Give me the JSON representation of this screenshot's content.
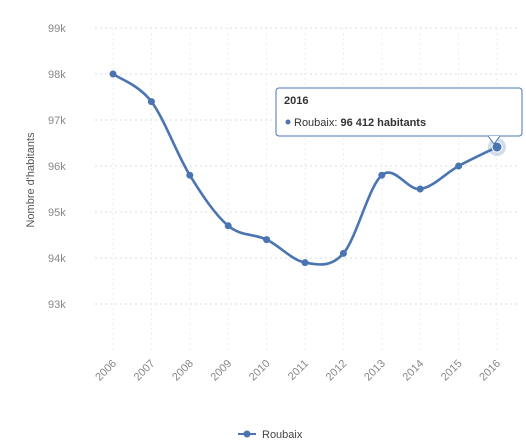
{
  "chart_data": {
    "type": "line",
    "ylabel": "Nombre d'habitants",
    "categories": [
      "2006",
      "2007",
      "2008",
      "2009",
      "2010",
      "2011",
      "2012",
      "2013",
      "2014",
      "2015",
      "2016"
    ],
    "series": [
      {
        "name": "Roubaix",
        "values": [
          98000,
          97400,
          95800,
          94700,
          94400,
          93900,
          94100,
          95800,
          95500,
          96000,
          96412
        ],
        "color": "#4a74b2"
      }
    ],
    "ylim": [
      92000,
      99000
    ],
    "yticks": [
      {
        "value": 99000,
        "label": "99k"
      },
      {
        "value": 98000,
        "label": "98k"
      },
      {
        "value": 97000,
        "label": "97k"
      },
      {
        "value": 96000,
        "label": "96k"
      },
      {
        "value": 95000,
        "label": "95k"
      },
      {
        "value": 94000,
        "label": "94k"
      },
      {
        "value": 93000,
        "label": "93k"
      }
    ],
    "grid": true,
    "legend": "bottom",
    "legend_label": "Roubaix",
    "tooltip": {
      "title": "2016",
      "series": "Roubaix",
      "value": "96 412 habitants",
      "index": 10
    }
  }
}
